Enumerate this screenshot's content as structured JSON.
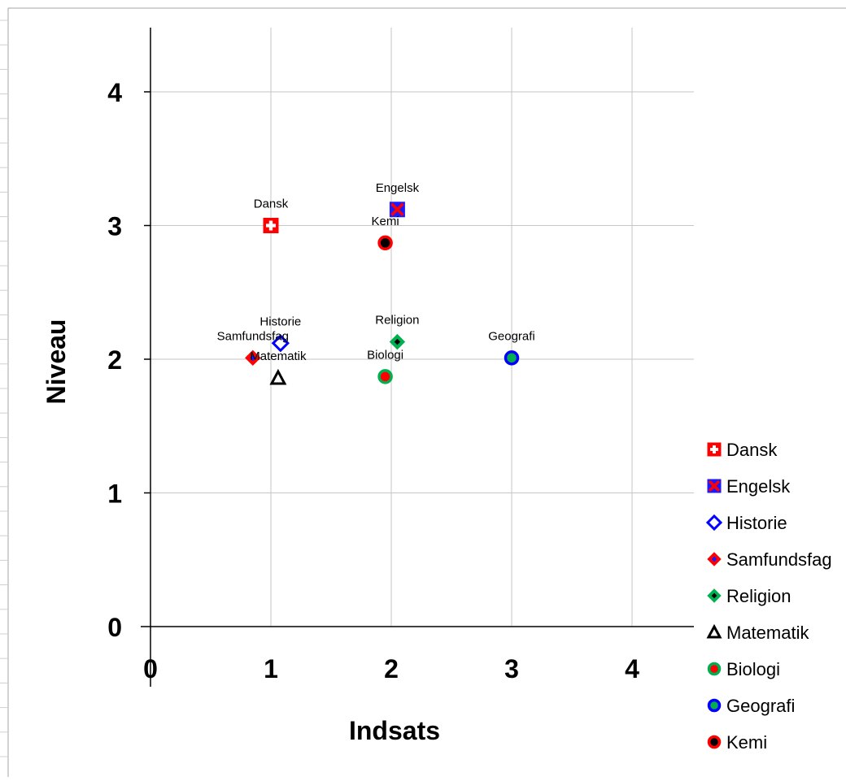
{
  "chart_data": {
    "type": "scatter",
    "title": "",
    "xlabel": "Indsats",
    "ylabel": "Niveau",
    "xlim": [
      0,
      4.5
    ],
    "ylim": [
      0,
      4.5
    ],
    "x_ticks": [
      "0",
      "1",
      "2",
      "3",
      "4"
    ],
    "y_ticks": [
      "0",
      "1",
      "2",
      "3",
      "4"
    ],
    "grid": true,
    "legend_position": "right",
    "series": [
      {
        "name": "Dansk",
        "x": 1.0,
        "y": 3.0,
        "label": "Dansk",
        "marker": "cross-square",
        "fill": "#ff0000",
        "stroke": "#ff0000",
        "mark": "#ffffff"
      },
      {
        "name": "Engelsk",
        "x": 2.05,
        "y": 3.12,
        "label": "Engelsk",
        "marker": "x-square",
        "fill": "#1a1aff",
        "stroke": "#1a1aff",
        "mark": "#ff0000"
      },
      {
        "name": "Historie",
        "x": 1.08,
        "y": 2.12,
        "label": "Historie",
        "marker": "diamond-open",
        "fill": "#ffffff",
        "stroke": "#0000ff",
        "mark": ""
      },
      {
        "name": "Samfundsfag",
        "x": 0.85,
        "y": 2.01,
        "label": "Samfundsfag",
        "marker": "diamond",
        "fill": "#ff0000",
        "stroke": "#ff0000",
        "mark": "#1a1aff"
      },
      {
        "name": "Religion",
        "x": 2.05,
        "y": 2.13,
        "label": "Religion",
        "marker": "diamond",
        "fill": "#00b050",
        "stroke": "#00b050",
        "mark": "#000000"
      },
      {
        "name": "Matematik",
        "x": 1.06,
        "y": 1.86,
        "label": "Matematik",
        "marker": "triangle-open",
        "fill": "#ffffff",
        "stroke": "#000000",
        "mark": ""
      },
      {
        "name": "Biologi",
        "x": 1.95,
        "y": 1.87,
        "label": "Biologi",
        "marker": "circle",
        "fill": "#ff0000",
        "stroke": "#00b050",
        "mark": ""
      },
      {
        "name": "Geografi",
        "x": 3.0,
        "y": 2.01,
        "label": "Geografi",
        "marker": "circle",
        "fill": "#00b050",
        "stroke": "#0000ff",
        "mark": ""
      },
      {
        "name": "Kemi",
        "x": 1.95,
        "y": 2.87,
        "label": "Kemi",
        "marker": "circle",
        "fill": "#000000",
        "stroke": "#ff0000",
        "mark": ""
      }
    ]
  }
}
